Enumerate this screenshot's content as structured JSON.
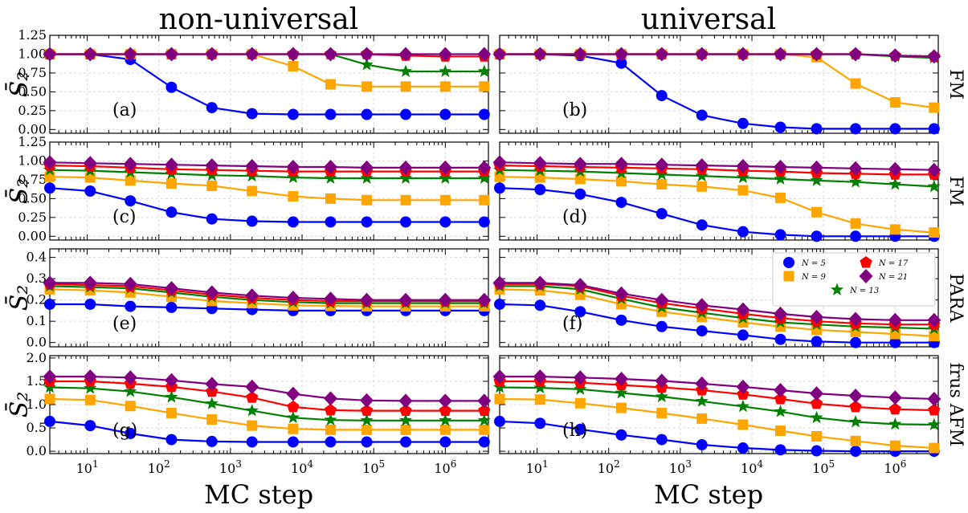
{
  "column_titles": [
    "non-universal",
    "universal"
  ],
  "row_labels": [
    "FM",
    "FM",
    "PARA",
    "frus AFM"
  ],
  "xlabel": "MC step",
  "ylabel": "S̄₂",
  "chart_data": {
    "type": "line",
    "layout": "4 rows x 2 columns of subplots",
    "x_scale": "log",
    "xlim": [
      3,
      4000000
    ],
    "x_ticks": [
      "10^1",
      "10^2",
      "10^3",
      "10^4",
      "10^5",
      "10^6"
    ],
    "x": [
      3,
      11,
      40,
      150,
      550,
      2000,
      7500,
      25000,
      80000,
      280000,
      1000000,
      3500000
    ],
    "legend": {
      "placement": "upper-right of panel (f)",
      "entries": [
        {
          "label": "N = 5",
          "name": "N = 5",
          "color": "#0000ff",
          "marker": "circle"
        },
        {
          "label": "N = 9",
          "name": "N = 9",
          "color": "#ffa500",
          "marker": "square"
        },
        {
          "label": "N = 13",
          "name": "N = 13",
          "color": "#008000",
          "marker": "star"
        },
        {
          "label": "N = 17",
          "name": "N = 17",
          "color": "#ff0000",
          "marker": "pentagon"
        },
        {
          "label": "N = 21",
          "name": "N = 21",
          "color": "#800080",
          "marker": "diamond"
        }
      ]
    },
    "panels": [
      {
        "label": "(a)",
        "ylim": [
          -0.05,
          1.25
        ],
        "yticks": [
          "0.00",
          "0.25",
          "0.50",
          "0.75",
          "1.00",
          "1.25"
        ],
        "series": [
          [
            1.0,
            1.0,
            0.93,
            0.56,
            0.29,
            0.21,
            0.2,
            0.2,
            0.2,
            0.2,
            0.2,
            0.2
          ],
          [
            1.0,
            1.0,
            1.0,
            1.0,
            1.0,
            1.0,
            0.84,
            0.6,
            0.57,
            0.57,
            0.57,
            0.57
          ],
          [
            1.0,
            1.0,
            1.0,
            1.0,
            1.0,
            1.0,
            1.0,
            1.0,
            0.86,
            0.77,
            0.77,
            0.77
          ],
          [
            1.0,
            1.0,
            1.0,
            1.0,
            1.0,
            1.0,
            1.0,
            1.0,
            1.0,
            0.98,
            0.97,
            0.97
          ],
          [
            1.0,
            1.0,
            1.0,
            1.0,
            1.0,
            1.0,
            1.0,
            1.0,
            1.0,
            1.0,
            1.0,
            1.0
          ]
        ]
      },
      {
        "label": "(b)",
        "ylim": [
          -0.05,
          1.25
        ],
        "yticks": [],
        "series": [
          [
            1.0,
            1.0,
            0.98,
            0.88,
            0.45,
            0.19,
            0.08,
            0.03,
            0.01,
            0.01,
            0.01,
            0.01
          ],
          [
            1.0,
            1.0,
            1.0,
            1.0,
            1.0,
            1.0,
            1.0,
            1.0,
            0.96,
            0.61,
            0.36,
            0.29
          ],
          [
            1.0,
            1.0,
            1.0,
            1.0,
            1.0,
            1.0,
            1.0,
            1.0,
            1.0,
            1.0,
            0.97,
            0.95
          ],
          [
            1.0,
            1.0,
            1.0,
            1.0,
            1.0,
            1.0,
            1.0,
            1.0,
            1.0,
            1.0,
            0.98,
            0.97
          ],
          [
            1.0,
            1.0,
            1.0,
            1.0,
            1.0,
            1.0,
            1.0,
            1.0,
            1.0,
            1.0,
            0.98,
            0.97
          ]
        ]
      },
      {
        "label": "(c)",
        "ylim": [
          -0.05,
          1.25
        ],
        "yticks": [
          "0.00",
          "0.25",
          "0.50",
          "0.75",
          "1.00",
          "1.25"
        ],
        "series": [
          [
            0.64,
            0.6,
            0.47,
            0.32,
            0.23,
            0.2,
            0.19,
            0.19,
            0.19,
            0.19,
            0.19,
            0.19
          ],
          [
            0.79,
            0.78,
            0.74,
            0.7,
            0.67,
            0.6,
            0.53,
            0.5,
            0.48,
            0.48,
            0.48,
            0.48
          ],
          [
            0.88,
            0.87,
            0.85,
            0.83,
            0.81,
            0.8,
            0.78,
            0.77,
            0.77,
            0.77,
            0.77,
            0.77
          ],
          [
            0.94,
            0.93,
            0.91,
            0.89,
            0.88,
            0.87,
            0.86,
            0.86,
            0.86,
            0.86,
            0.86,
            0.86
          ],
          [
            0.98,
            0.97,
            0.96,
            0.95,
            0.94,
            0.93,
            0.92,
            0.92,
            0.91,
            0.91,
            0.91,
            0.91
          ]
        ]
      },
      {
        "label": "(d)",
        "ylim": [
          -0.05,
          1.25
        ],
        "yticks": [],
        "series": [
          [
            0.64,
            0.62,
            0.56,
            0.45,
            0.3,
            0.15,
            0.06,
            0.02,
            0.0,
            0.0,
            0.0,
            0.0
          ],
          [
            0.79,
            0.78,
            0.76,
            0.73,
            0.69,
            0.66,
            0.61,
            0.51,
            0.32,
            0.17,
            0.09,
            0.05
          ],
          [
            0.88,
            0.87,
            0.86,
            0.84,
            0.82,
            0.8,
            0.78,
            0.76,
            0.74,
            0.72,
            0.69,
            0.66
          ],
          [
            0.94,
            0.93,
            0.92,
            0.91,
            0.9,
            0.89,
            0.87,
            0.86,
            0.84,
            0.83,
            0.82,
            0.82
          ],
          [
            0.98,
            0.97,
            0.96,
            0.96,
            0.95,
            0.94,
            0.93,
            0.92,
            0.91,
            0.9,
            0.89,
            0.88
          ]
        ]
      },
      {
        "label": "(e)",
        "ylim": [
          -0.02,
          0.44
        ],
        "yticks": [
          "0.0",
          "0.1",
          "0.2",
          "0.3",
          "0.4"
        ],
        "series": [
          [
            0.18,
            0.18,
            0.17,
            0.165,
            0.16,
            0.155,
            0.15,
            0.15,
            0.15,
            0.15,
            0.15,
            0.15
          ],
          [
            0.25,
            0.245,
            0.235,
            0.215,
            0.195,
            0.185,
            0.175,
            0.172,
            0.17,
            0.17,
            0.17,
            0.17
          ],
          [
            0.265,
            0.26,
            0.255,
            0.235,
            0.215,
            0.2,
            0.19,
            0.185,
            0.185,
            0.185,
            0.185,
            0.185
          ],
          [
            0.275,
            0.27,
            0.265,
            0.245,
            0.225,
            0.21,
            0.2,
            0.195,
            0.195,
            0.195,
            0.195,
            0.195
          ],
          [
            0.28,
            0.28,
            0.275,
            0.255,
            0.235,
            0.22,
            0.21,
            0.205,
            0.2,
            0.2,
            0.2,
            0.2
          ]
        ]
      },
      {
        "label": "(f)",
        "ylim": [
          -0.02,
          0.44
        ],
        "yticks": [],
        "series": [
          [
            0.18,
            0.175,
            0.145,
            0.105,
            0.075,
            0.055,
            0.035,
            0.015,
            0.005,
            0.0,
            0.0,
            0.0
          ],
          [
            0.25,
            0.245,
            0.225,
            0.18,
            0.145,
            0.12,
            0.095,
            0.075,
            0.06,
            0.05,
            0.04,
            0.03
          ],
          [
            0.265,
            0.265,
            0.25,
            0.205,
            0.165,
            0.14,
            0.115,
            0.095,
            0.085,
            0.075,
            0.07,
            0.065
          ],
          [
            0.275,
            0.275,
            0.265,
            0.22,
            0.185,
            0.16,
            0.135,
            0.115,
            0.1,
            0.09,
            0.085,
            0.085
          ],
          [
            0.28,
            0.28,
            0.27,
            0.23,
            0.2,
            0.175,
            0.155,
            0.135,
            0.12,
            0.11,
            0.105,
            0.105
          ]
        ]
      },
      {
        "label": "(g)",
        "ylim": [
          -0.05,
          2.05
        ],
        "yticks": [
          "0.0",
          "0.5",
          "1.0",
          "1.5",
          "2.0"
        ],
        "series": [
          [
            0.64,
            0.55,
            0.38,
            0.25,
            0.21,
            0.2,
            0.2,
            0.2,
            0.2,
            0.2,
            0.2,
            0.2
          ],
          [
            1.12,
            1.1,
            0.97,
            0.82,
            0.68,
            0.55,
            0.48,
            0.46,
            0.46,
            0.46,
            0.46,
            0.46
          ],
          [
            1.37,
            1.35,
            1.28,
            1.16,
            1.02,
            0.87,
            0.72,
            0.67,
            0.66,
            0.66,
            0.66,
            0.66
          ],
          [
            1.5,
            1.5,
            1.45,
            1.38,
            1.28,
            1.15,
            0.95,
            0.88,
            0.87,
            0.87,
            0.87,
            0.87
          ],
          [
            1.6,
            1.6,
            1.58,
            1.52,
            1.44,
            1.38,
            1.23,
            1.13,
            1.09,
            1.08,
            1.08,
            1.08
          ]
        ]
      },
      {
        "label": "(h)",
        "ylim": [
          -0.05,
          2.05
        ],
        "yticks": [],
        "series": [
          [
            0.64,
            0.6,
            0.47,
            0.35,
            0.25,
            0.14,
            0.07,
            0.03,
            0.01,
            0.0,
            0.0,
            0.0
          ],
          [
            1.12,
            1.11,
            1.03,
            0.93,
            0.82,
            0.7,
            0.57,
            0.44,
            0.32,
            0.22,
            0.12,
            0.07
          ],
          [
            1.37,
            1.36,
            1.33,
            1.25,
            1.17,
            1.07,
            0.96,
            0.85,
            0.72,
            0.63,
            0.58,
            0.57
          ],
          [
            1.5,
            1.5,
            1.47,
            1.42,
            1.37,
            1.31,
            1.22,
            1.12,
            1.02,
            0.95,
            0.9,
            0.88
          ],
          [
            1.6,
            1.6,
            1.58,
            1.55,
            1.51,
            1.45,
            1.38,
            1.31,
            1.24,
            1.19,
            1.15,
            1.12
          ]
        ]
      }
    ]
  }
}
